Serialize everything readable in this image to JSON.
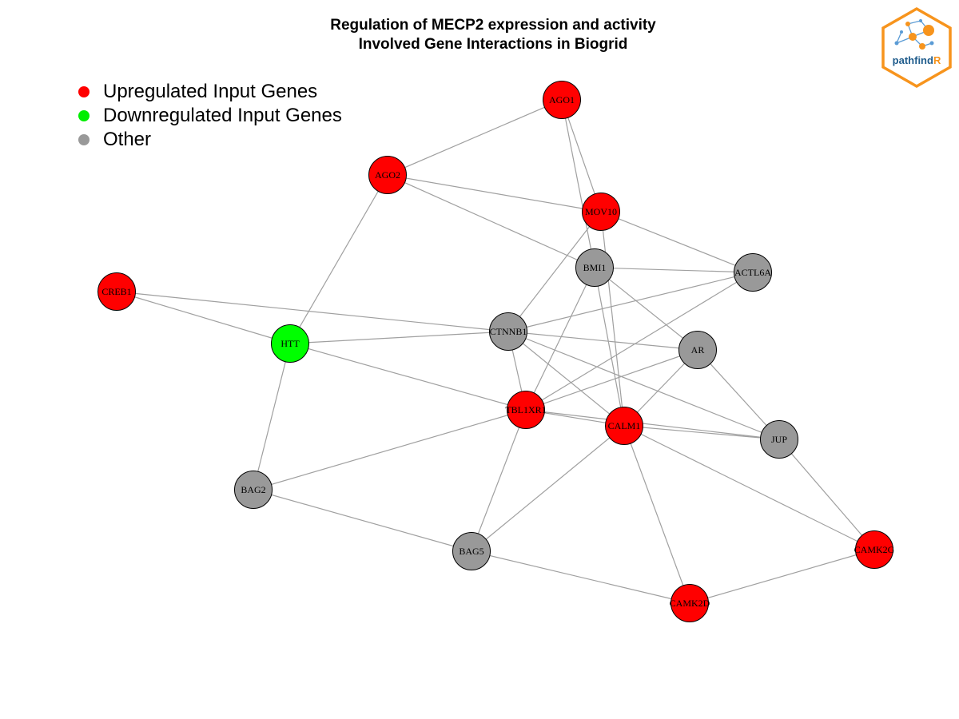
{
  "title": {
    "line1": "Regulation of MECP2 expression and activity",
    "line2": "Involved Gene Interactions in Biogrid"
  },
  "legend": [
    {
      "label": "Upregulated Input Genes",
      "color": "#ff0000"
    },
    {
      "label": "Downregulated Input Genes",
      "color": "#00ee00"
    },
    {
      "label": "Other",
      "color": "#999999"
    }
  ],
  "logo": {
    "text_main": "pathfind",
    "text_accent": "R",
    "border_color": "#f7941d",
    "icon": "network-hexagon-icon"
  },
  "colors": {
    "up": "#ff0000",
    "down": "#00ff00",
    "other": "#999999",
    "edge": "#a0a0a0",
    "stroke": "#000000"
  },
  "nodes": [
    {
      "id": "AGO1",
      "status": "up"
    },
    {
      "id": "AGO2",
      "status": "up"
    },
    {
      "id": "MOV10",
      "status": "up"
    },
    {
      "id": "BMI1",
      "status": "other"
    },
    {
      "id": "ACTL6A",
      "status": "other"
    },
    {
      "id": "CREB1",
      "status": "up"
    },
    {
      "id": "HTT",
      "status": "down"
    },
    {
      "id": "CTNNB1",
      "status": "other"
    },
    {
      "id": "AR",
      "status": "other"
    },
    {
      "id": "TBL1XR1",
      "status": "up"
    },
    {
      "id": "CALM1",
      "status": "up"
    },
    {
      "id": "JUP",
      "status": "other"
    },
    {
      "id": "BAG2",
      "status": "other"
    },
    {
      "id": "BAG5",
      "status": "other"
    },
    {
      "id": "CAMK2G",
      "status": "up"
    },
    {
      "id": "CAMK2D",
      "status": "up"
    }
  ],
  "edges": [
    [
      "AGO1",
      "AGO2"
    ],
    [
      "AGO1",
      "MOV10"
    ],
    [
      "AGO1",
      "BMI1"
    ],
    [
      "AGO2",
      "MOV10"
    ],
    [
      "AGO2",
      "BMI1"
    ],
    [
      "AGO2",
      "HTT"
    ],
    [
      "MOV10",
      "ACTL6A"
    ],
    [
      "MOV10",
      "CTNNB1"
    ],
    [
      "MOV10",
      "CALM1"
    ],
    [
      "BMI1",
      "ACTL6A"
    ],
    [
      "BMI1",
      "AR"
    ],
    [
      "BMI1",
      "TBL1XR1"
    ],
    [
      "BMI1",
      "CALM1"
    ],
    [
      "ACTL6A",
      "CTNNB1"
    ],
    [
      "ACTL6A",
      "TBL1XR1"
    ],
    [
      "CREB1",
      "HTT"
    ],
    [
      "CREB1",
      "CTNNB1"
    ],
    [
      "HTT",
      "CTNNB1"
    ],
    [
      "HTT",
      "TBL1XR1"
    ],
    [
      "HTT",
      "BAG2"
    ],
    [
      "CTNNB1",
      "AR"
    ],
    [
      "CTNNB1",
      "TBL1XR1"
    ],
    [
      "CTNNB1",
      "CALM1"
    ],
    [
      "CTNNB1",
      "JUP"
    ],
    [
      "AR",
      "TBL1XR1"
    ],
    [
      "AR",
      "CALM1"
    ],
    [
      "AR",
      "JUP"
    ],
    [
      "TBL1XR1",
      "CALM1"
    ],
    [
      "TBL1XR1",
      "JUP"
    ],
    [
      "TBL1XR1",
      "BAG2"
    ],
    [
      "TBL1XR1",
      "BAG5"
    ],
    [
      "CALM1",
      "JUP"
    ],
    [
      "CALM1",
      "BAG5"
    ],
    [
      "CALM1",
      "CAMK2G"
    ],
    [
      "CALM1",
      "CAMK2D"
    ],
    [
      "JUP",
      "CAMK2G"
    ],
    [
      "BAG2",
      "BAG5"
    ],
    [
      "BAG5",
      "CAMK2D"
    ],
    [
      "CAMK2G",
      "CAMK2D"
    ]
  ]
}
